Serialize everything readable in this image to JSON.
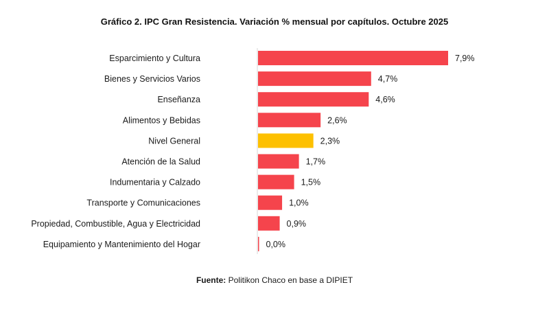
{
  "chart_data": {
    "type": "bar",
    "orientation": "horizontal",
    "title": "Gráfico 2. IPC Gran Resistencia. Variación % mensual por capítulos. Octubre 2025",
    "categories": [
      "Esparcimiento y Cultura",
      "Bienes y Servicios Varios",
      "Enseñanza",
      "Alimentos y Bebidas",
      "Nivel General",
      "Atención de la Salud",
      "Indumentaria y Calzado",
      "Transporte y Comunicaciones",
      "Propiedad, Combustible, Agua y Electricidad",
      "Equipamiento y Mantenimiento del Hogar"
    ],
    "values": [
      7.9,
      4.7,
      4.6,
      2.6,
      2.3,
      1.7,
      1.5,
      1.0,
      0.9,
      0.0
    ],
    "data_labels": [
      "7,9%",
      "4,7%",
      "4,6%",
      "2,6%",
      "2,3%",
      "1,7%",
      "1,5%",
      "1,0%",
      "0,9%",
      "0,0%"
    ],
    "highlight_category": "Nivel General",
    "colors": {
      "bar": "#f5444c",
      "highlight": "#fdc000",
      "axis": "#d4d4d4"
    },
    "xlim": [
      0,
      7.9
    ],
    "grid": false,
    "legend": "none"
  },
  "source": {
    "label": "Fuente:",
    "text": "Politikon Chaco en base a DIPIET"
  }
}
